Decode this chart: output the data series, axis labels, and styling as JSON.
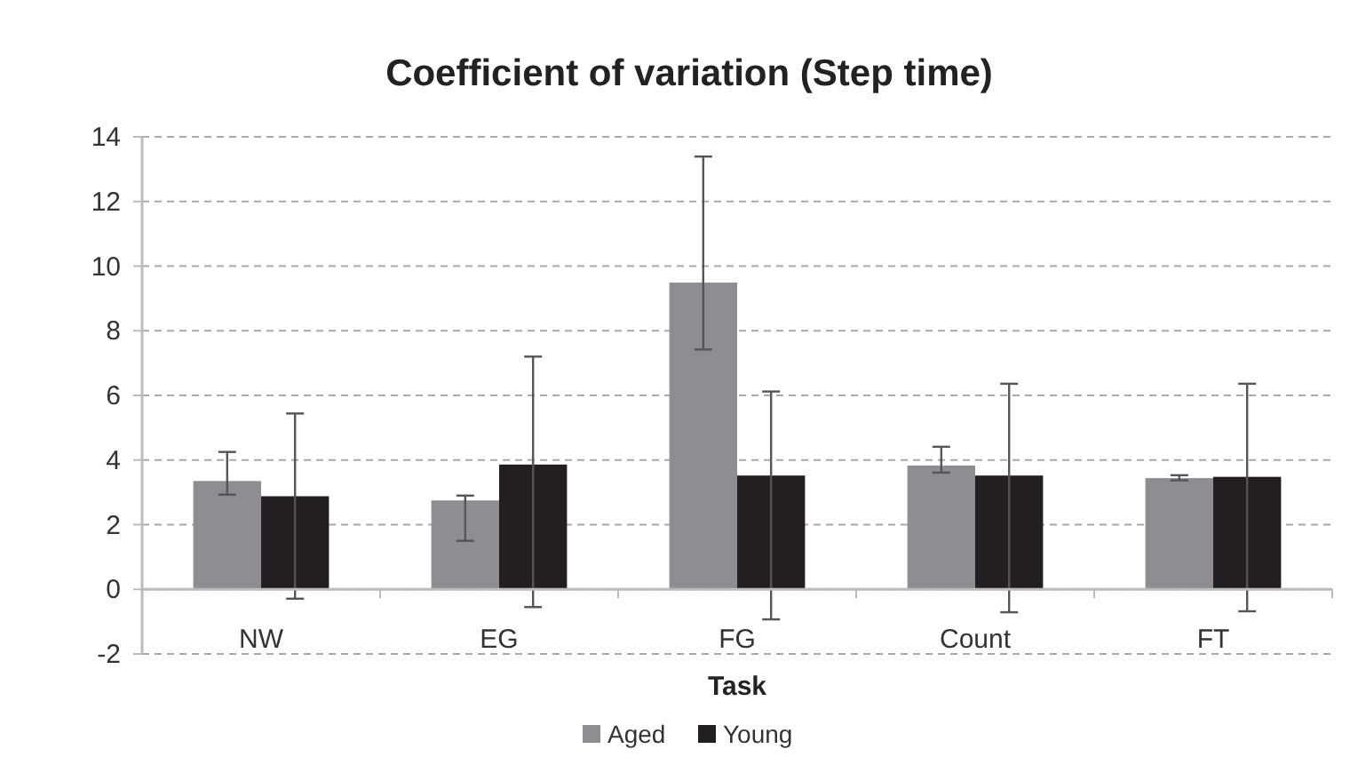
{
  "chart_data": {
    "type": "bar",
    "title": "Coefficient of variation (Step time)",
    "xlabel": "Task",
    "categories": [
      "NW",
      "EG",
      "FG",
      "Count",
      "FT"
    ],
    "series": [
      {
        "name": "Aged",
        "color": "#8d8e91",
        "values": [
          3.35,
          2.75,
          9.49,
          3.83,
          3.44
        ],
        "errors": [
          [
            2.93,
            4.25
          ],
          [
            1.5,
            2.9
          ],
          [
            7.42,
            13.39
          ],
          [
            3.61,
            4.41
          ],
          [
            3.37,
            3.53
          ]
        ]
      },
      {
        "name": "Young",
        "color": "#231f20",
        "values": [
          2.88,
          3.86,
          3.52,
          3.52,
          3.48
        ],
        "errors": [
          [
            -0.29,
            5.44
          ],
          [
            -0.55,
            7.2
          ],
          [
            -0.93,
            6.12
          ],
          [
            -0.71,
            6.36
          ],
          [
            -0.68,
            6.36
          ]
        ]
      }
    ],
    "ylim": [
      -2,
      14
    ],
    "yticks": [
      -2,
      0,
      2,
      4,
      6,
      8,
      10,
      12,
      14
    ],
    "grid": "y",
    "legend": "bottom"
  }
}
